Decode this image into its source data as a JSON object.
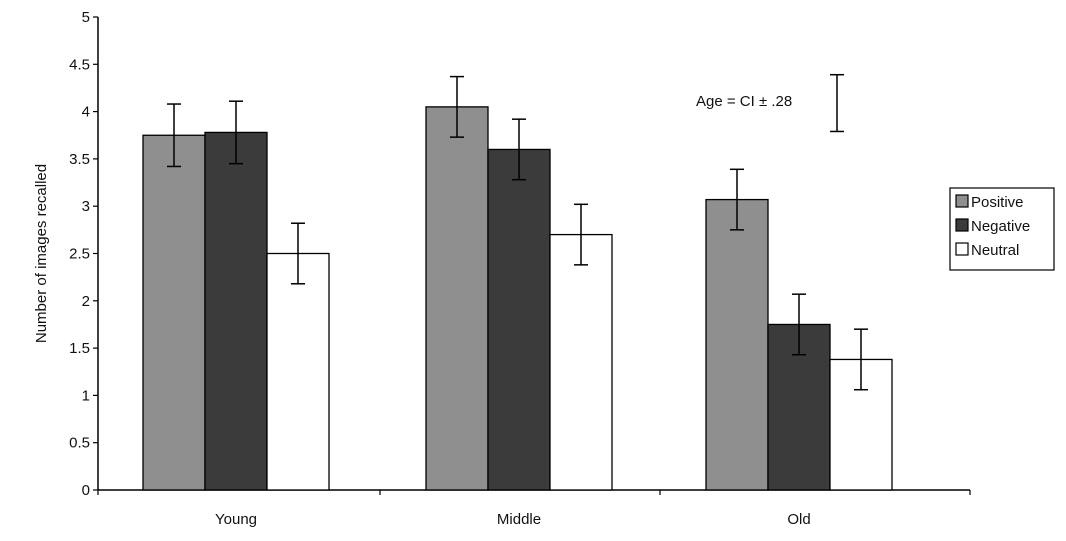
{
  "chart_data": {
    "type": "bar",
    "title": "",
    "xlabel": "",
    "ylabel": "Number of images recalled",
    "ylim": [
      0,
      5
    ],
    "yticks": [
      "0",
      "0.5",
      "1",
      "1.5",
      "2",
      "2.5",
      "3",
      "3.5",
      "4",
      "4.5",
      "5"
    ],
    "categories": [
      "Young",
      "Middle",
      "Old"
    ],
    "series": [
      {
        "name": "Positive",
        "color": "#8f8f8f",
        "values": [
          3.75,
          4.05,
          3.07
        ],
        "error": [
          0.33,
          0.32,
          0.32
        ]
      },
      {
        "name": "Negative",
        "color": "#3b3b3b",
        "values": [
          3.78,
          3.6,
          1.75
        ],
        "error": [
          0.33,
          0.32,
          0.32
        ]
      },
      {
        "name": "Neutral",
        "color": "#ffffff",
        "values": [
          2.5,
          2.7,
          1.38
        ],
        "error": [
          0.32,
          0.32,
          0.32
        ]
      }
    ],
    "annotation": {
      "text": "Age = CI ± .28",
      "ci_low": 3.79,
      "ci_high": 4.39
    },
    "legend_position": "right",
    "grid": false
  }
}
